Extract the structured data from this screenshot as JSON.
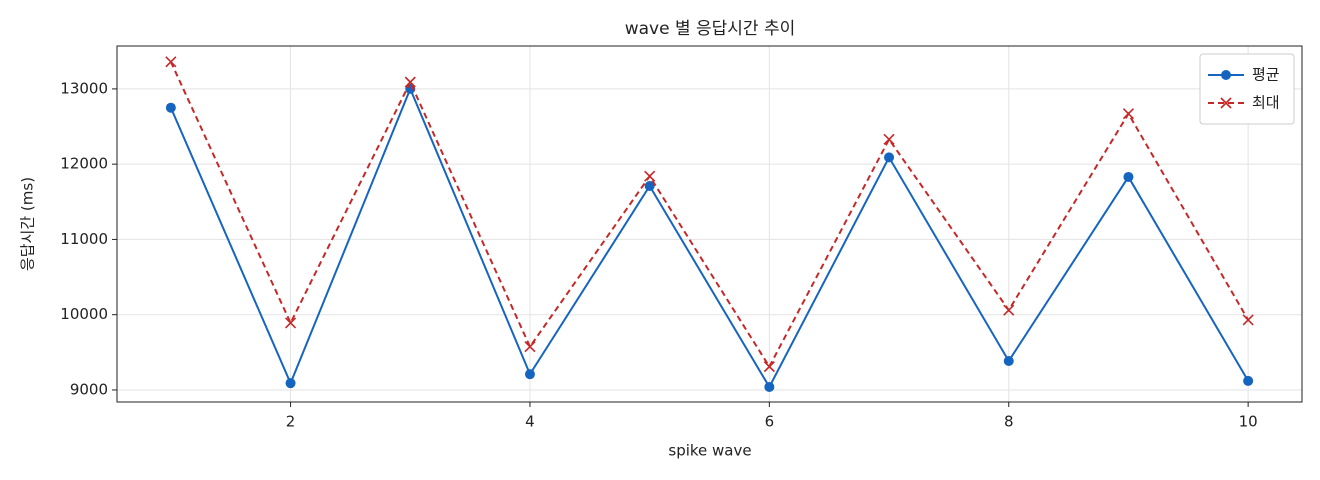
{
  "chart_data": {
    "type": "line",
    "title": "wave 별 응답시간 추이",
    "x_label": "spike wave",
    "y_label": "응답시간 (ms)",
    "x": [
      1,
      2,
      3,
      4,
      5,
      6,
      7,
      8,
      9,
      10
    ],
    "series": [
      {
        "name": "평균",
        "color": "#1565c0",
        "marker": "circle",
        "linestyle": "solid",
        "values": [
          12750,
          9090,
          13000,
          9210,
          11710,
          9040,
          12090,
          9385,
          11830,
          9120
        ]
      },
      {
        "name": "최대",
        "color": "#c62828",
        "marker": "x",
        "linestyle": "dashed",
        "values": [
          13360,
          9890,
          13090,
          9575,
          11840,
          9310,
          12330,
          10060,
          12670,
          9930
        ]
      }
    ],
    "xlim": [
      0.55,
      10.45
    ],
    "xticks": [
      2,
      4,
      6,
      8,
      10
    ],
    "ylim": [
      8840,
      13570
    ],
    "yticks": [
      9000,
      10000,
      11000,
      12000,
      13000
    ],
    "grid": true,
    "legend": "upper right"
  }
}
